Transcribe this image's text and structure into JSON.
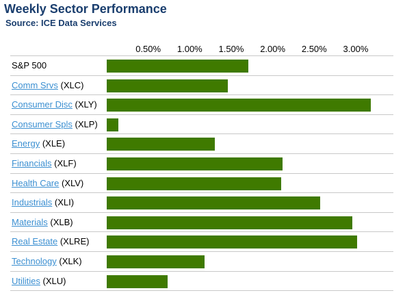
{
  "title": "Weekly Sector Performance",
  "subtitle": "Source: ICE Data Services",
  "chart_data": {
    "type": "bar",
    "orientation": "horizontal",
    "ticks": [
      "0.50%",
      "1.00%",
      "1.50%",
      "2.00%",
      "2.50%",
      "3.00%"
    ],
    "tick_values": [
      0.5,
      1.0,
      1.5,
      2.0,
      2.5,
      3.0
    ],
    "xlim": [
      0,
      3.33
    ],
    "grid": false,
    "bar_color": "#3f7a00",
    "rows": [
      {
        "name": "S&P 500",
        "ticker": "",
        "link": false,
        "value": 1.71
      },
      {
        "name": "Comm Srvs",
        "ticker": "(XLC)",
        "link": true,
        "value": 1.46
      },
      {
        "name": "Consumer Disc",
        "ticker": "(XLY)",
        "link": true,
        "value": 3.18
      },
      {
        "name": "Consumer Spls",
        "ticker": "(XLP)",
        "link": true,
        "value": 0.14
      },
      {
        "name": "Energy",
        "ticker": "(XLE)",
        "link": true,
        "value": 1.3
      },
      {
        "name": "Financials",
        "ticker": "(XLF)",
        "link": true,
        "value": 2.12
      },
      {
        "name": "Health Care",
        "ticker": "(XLV)",
        "link": true,
        "value": 2.1
      },
      {
        "name": "Industrials",
        "ticker": "(XLI)",
        "link": true,
        "value": 2.57
      },
      {
        "name": "Materials",
        "ticker": "(XLB)",
        "link": true,
        "value": 2.96
      },
      {
        "name": "Real Estate",
        "ticker": "(XLRE)",
        "link": true,
        "value": 3.02
      },
      {
        "name": "Technology",
        "ticker": "(XLK)",
        "link": true,
        "value": 1.18
      },
      {
        "name": "Utilities",
        "ticker": "(XLU)",
        "link": true,
        "value": 0.73
      }
    ]
  }
}
